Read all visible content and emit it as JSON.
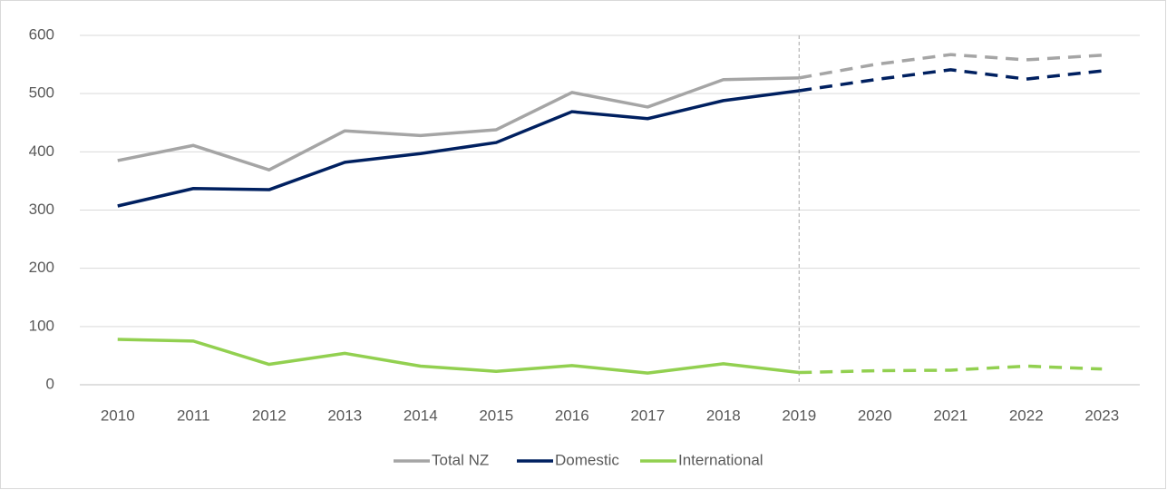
{
  "chart_data": {
    "type": "line",
    "categories": [
      "2010",
      "2011",
      "2012",
      "2013",
      "2014",
      "2015",
      "2016",
      "2017",
      "2018",
      "2019",
      "2020",
      "2021",
      "2022",
      "2023"
    ],
    "series": [
      {
        "name": "Total NZ",
        "color": "#a5a5a5",
        "values": [
          385,
          411,
          369,
          436,
          428,
          438,
          502,
          477,
          524,
          527,
          550,
          567,
          558,
          566
        ]
      },
      {
        "name": "Domestic",
        "color": "#002060",
        "values": [
          307,
          337,
          335,
          382,
          397,
          416,
          469,
          457,
          488,
          505,
          524,
          541,
          525,
          539
        ]
      },
      {
        "name": "International",
        "color": "#92d050",
        "values": [
          78,
          75,
          35,
          54,
          32,
          23,
          33,
          20,
          36,
          21,
          24,
          25,
          32,
          27
        ]
      }
    ],
    "forecast_from": "2019",
    "ylim": [
      0,
      600
    ],
    "yticks": [
      0,
      100,
      200,
      300,
      400,
      500,
      600
    ],
    "grid": true,
    "legend": "bottom"
  }
}
